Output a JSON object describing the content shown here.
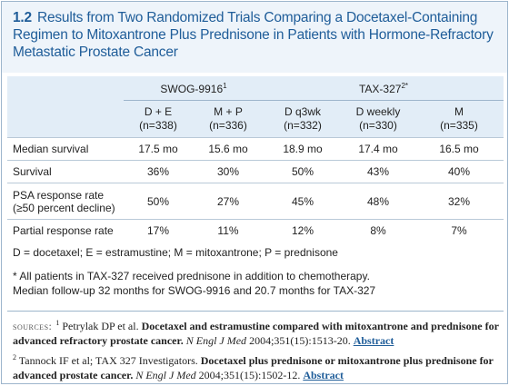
{
  "header": {
    "number": "1.2",
    "title": "Results from Two Randomized Trials Comparing a Docetaxel-Containing Regimen to Mitoxantrone Plus Prednisone in Patients with Hormone-Refractory Metastatic Prostate Cancer"
  },
  "table": {
    "groups": [
      {
        "name": "SWOG-9916",
        "sup": "1",
        "span": 2
      },
      {
        "name": "TAX-327",
        "sup": "2*",
        "span": 3
      }
    ],
    "columns": [
      {
        "label": "D + E",
        "n": "(n=338)"
      },
      {
        "label": "M + P",
        "n": "(n=336)"
      },
      {
        "label": "D q3wk",
        "n": "(n=332)"
      },
      {
        "label": "D weekly",
        "n": "(n=330)"
      },
      {
        "label": "M",
        "n": "(n=335)"
      }
    ],
    "rows": [
      {
        "label": [
          "Median survival"
        ],
        "cells": [
          "17.5 mo",
          "15.6 mo",
          "18.9 mo",
          "17.4 mo",
          "16.5 mo"
        ]
      },
      {
        "label": [
          "Survival"
        ],
        "cells": [
          "36%",
          "30%",
          "50%",
          "43%",
          "40%"
        ]
      },
      {
        "label": [
          "PSA response rate",
          "(≥50 percent decline)"
        ],
        "cells": [
          "50%",
          "27%",
          "45%",
          "48%",
          "32%"
        ]
      },
      {
        "label": [
          "Partial response rate"
        ],
        "cells": [
          "17%",
          "11%",
          "12%",
          "8%",
          "7%"
        ]
      }
    ]
  },
  "abbreviations": "D = docetaxel; E = estramustine; M = mitoxantrone; P = prednisone",
  "notes": [
    "* All patients in TAX-327 received prednisone in addition to chemotherapy.",
    "Median follow-up 32 months for SWOG-9916 and 20.7 months for TAX-327"
  ],
  "sources": {
    "label": "sources:",
    "items": [
      {
        "sup": "1",
        "authors": "Petrylak DP et al.",
        "title": "Docetaxel and estramustine compared with mitoxantrone and prednisone for advanced refractory prostate cancer.",
        "journal": "N Engl J Med",
        "citation": "2004;351(15):1513-20.",
        "link": "Abstract"
      },
      {
        "sup": "2",
        "authors": "Tannock IF et al; TAX 327 Investigators.",
        "title": "Docetaxel plus prednisone or mitoxantrone plus prednisone for advanced prostate cancer.",
        "journal": "N Engl J Med",
        "citation": "2004;351(15):1502-12.",
        "link": "Abstract"
      }
    ]
  }
}
